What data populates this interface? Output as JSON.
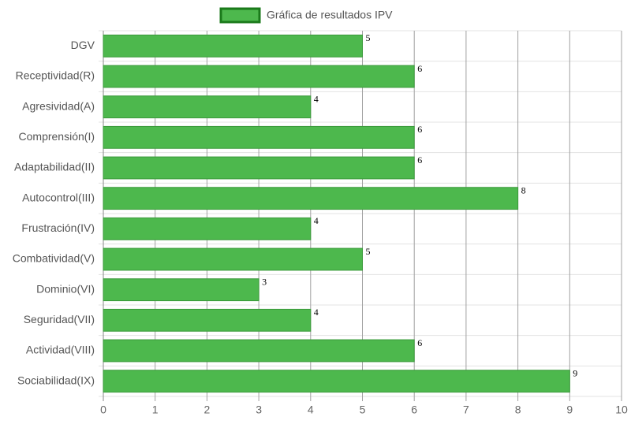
{
  "chart_data": {
    "type": "bar",
    "orientation": "horizontal",
    "categories": [
      "DGV",
      "Receptividad(R)",
      "Agresividad(A)",
      "Comprensión(I)",
      "Adaptabilidad(II)",
      "Autocontrol(III)",
      "Frustración(IV)",
      "Combatividad(V)",
      "Dominio(VI)",
      "Seguridad(VII)",
      "Actividad(VIII)",
      "Sociabilidad(IX)"
    ],
    "series": [
      {
        "name": "Gráfica de resultados IPV",
        "color": "#4db84d",
        "values": [
          5,
          6,
          4,
          6,
          6,
          8,
          4,
          5,
          3,
          4,
          6,
          9
        ]
      }
    ],
    "xlim": [
      0,
      10
    ],
    "xticks": [
      0,
      1,
      2,
      3,
      4,
      5,
      6,
      7,
      8,
      9,
      10
    ],
    "grid": true,
    "legend": "top"
  }
}
